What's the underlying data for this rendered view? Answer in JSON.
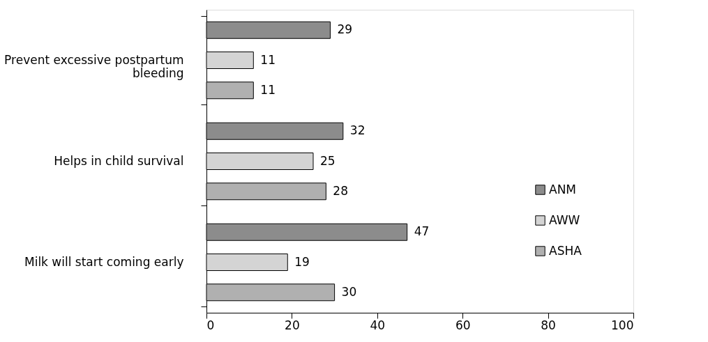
{
  "chart_data": {
    "type": "bar",
    "orientation": "horizontal",
    "categories": [
      "Prevent excessive postpartum bleeding",
      "Helps in child survival",
      "Milk will start coming early"
    ],
    "series": [
      {
        "name": "ANM",
        "color": "#8c8c8c",
        "values": [
          29,
          32,
          47
        ]
      },
      {
        "name": "AWW",
        "color": "#d4d4d4",
        "values": [
          11,
          25,
          19
        ]
      },
      {
        "name": "ASHA",
        "color": "#b0b0b0",
        "values": [
          11,
          28,
          30
        ]
      }
    ],
    "xlim": [
      0,
      100
    ],
    "xticks": [
      0,
      20,
      40,
      60,
      80,
      100
    ],
    "data_labels": true,
    "grid": false,
    "legend": "right"
  }
}
